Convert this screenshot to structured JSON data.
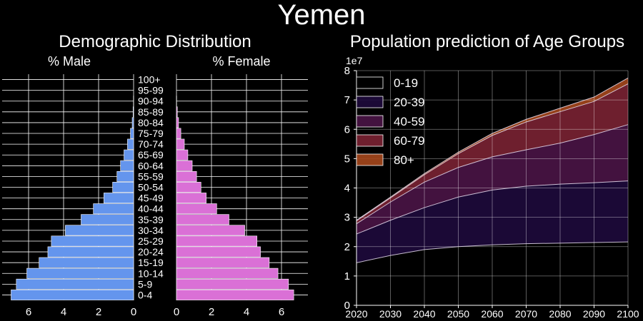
{
  "title": "Yemen",
  "chart_data": [
    {
      "type": "bar",
      "orientation": "horizontal",
      "title": "Demographic Distribution",
      "categories": [
        "0-4",
        "5-9",
        "10-14",
        "15-19",
        "20-24",
        "25-29",
        "30-34",
        "35-39",
        "40-44",
        "45-49",
        "50-54",
        "55-59",
        "60-64",
        "65-69",
        "70-74",
        "75-79",
        "80-84",
        "85-89",
        "90-94",
        "95-99",
        "100+"
      ],
      "series": [
        {
          "name": "% Male",
          "color": "#6495ed",
          "values": [
            7.0,
            6.7,
            6.1,
            5.4,
            4.9,
            4.7,
            3.9,
            3.0,
            2.3,
            1.7,
            1.2,
            0.95,
            0.75,
            0.55,
            0.35,
            0.18,
            0.08,
            0.03,
            0.01,
            0.0,
            0.0
          ]
        },
        {
          "name": "% Female",
          "color": "#da70d6",
          "values": [
            6.7,
            6.4,
            5.8,
            5.3,
            4.8,
            4.6,
            3.9,
            3.0,
            2.3,
            1.7,
            1.4,
            1.15,
            0.9,
            0.65,
            0.45,
            0.25,
            0.12,
            0.05,
            0.01,
            0.0,
            0.0
          ]
        }
      ],
      "xticks": [
        0,
        2,
        4,
        6
      ],
      "xlim": [
        0,
        7.2
      ],
      "grid": true
    },
    {
      "type": "area",
      "stacked": true,
      "title": "Population prediction of Age Groups",
      "scale_label": "1e7",
      "x": [
        2020,
        2030,
        2040,
        2050,
        2060,
        2070,
        2080,
        2090,
        2100
      ],
      "series": [
        {
          "name": "0-19",
          "color": "#000000",
          "values": [
            1.45,
            1.7,
            1.9,
            2.0,
            2.06,
            2.1,
            2.12,
            2.14,
            2.16
          ]
        },
        {
          "name": "20-39",
          "color": "#1e0a3c",
          "values": [
            0.98,
            1.2,
            1.43,
            1.69,
            1.87,
            1.96,
            2.01,
            2.04,
            2.08
          ]
        },
        {
          "name": "40-59",
          "color": "#4a1446",
          "values": [
            0.35,
            0.62,
            0.87,
            1.01,
            1.13,
            1.24,
            1.4,
            1.64,
            1.92
          ]
        },
        {
          "name": "60-79",
          "color": "#7a2233",
          "values": [
            0.1,
            0.14,
            0.25,
            0.47,
            0.73,
            0.95,
            1.07,
            1.13,
            1.39
          ]
        },
        {
          "name": "80+",
          "color": "#a5471c",
          "values": [
            0.02,
            0.03,
            0.04,
            0.05,
            0.07,
            0.09,
            0.12,
            0.15,
            0.2
          ]
        }
      ],
      "xlim": [
        2020,
        2100
      ],
      "ylim": [
        0,
        8
      ],
      "yticks": [
        0,
        1,
        2,
        3,
        4,
        5,
        6,
        7,
        8
      ],
      "grid": true,
      "legend": "top-left"
    }
  ]
}
